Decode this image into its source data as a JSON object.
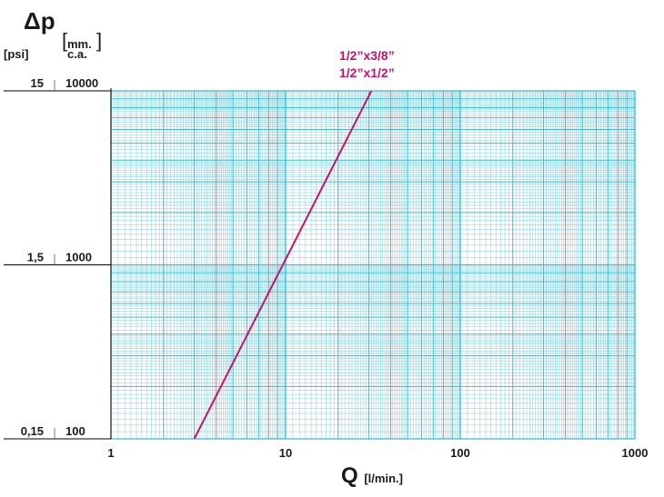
{
  "header": {
    "y_title": "Δp",
    "unit_psi": "[psi]",
    "unit_mm_line1": "mm.",
    "unit_mm_line2": "c.a."
  },
  "x_axis": {
    "title": "Q",
    "unit": "[l/min.]"
  },
  "colors": {
    "grid": "#3cb9d2",
    "line": "#c8116e",
    "text": "#1a1a1a"
  },
  "chart_data": {
    "type": "line",
    "x_scale": "log",
    "y_scale": "log",
    "xlim": [
      1,
      1000
    ],
    "ylim": [
      100,
      10000
    ],
    "xlabel": "Q [l/min.]",
    "ylabel": "Δp",
    "grid": true,
    "x_ticks": [
      "1",
      "10",
      "100",
      "1000"
    ],
    "y_ticks_mm": [
      "10000",
      "1000",
      "100"
    ],
    "y_ticks_psi": [
      "15",
      "1,5",
      "0,15"
    ],
    "series": [
      {
        "name": "1/2”x3/8”",
        "x": [
          3,
          31
        ],
        "y": [
          100,
          10000
        ]
      }
    ],
    "series_labels": [
      "1/2”x3/8”",
      "1/2”x1/2”"
    ]
  }
}
